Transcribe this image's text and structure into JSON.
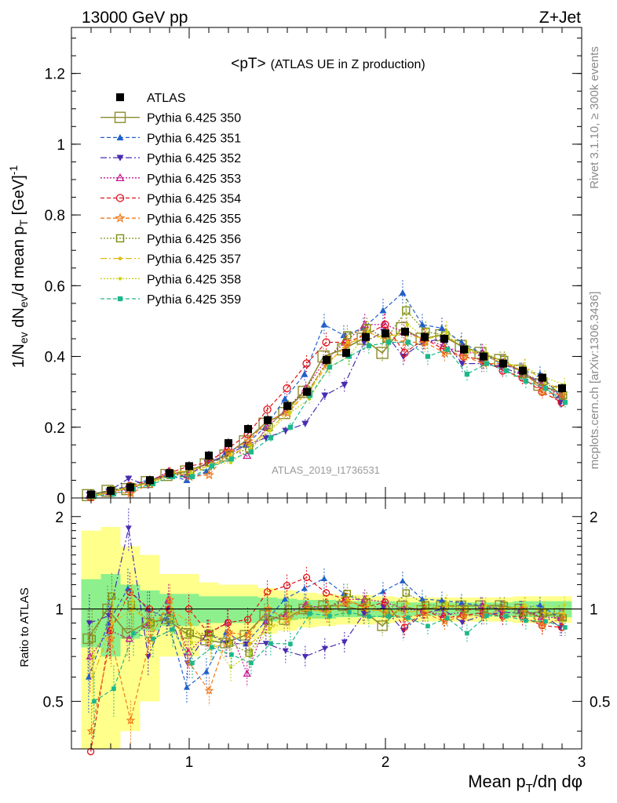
{
  "header": {
    "energy": "13000 GeV pp",
    "process": "Z+Jet"
  },
  "side": {
    "rivet": "Rivet 3.1.10, ≥ 300k events",
    "mcplots": "mcplots.cern.ch [arXiv:1306.3436]"
  },
  "chart_data": [
    {
      "type": "line",
      "title": "<pT>",
      "subtitle": "(ATLAS UE in Z production)",
      "analysis_label": "ATLAS_2019_I1736531",
      "ylabel": "1/N_ev dN_ev/d mean p_T [GeV]^-1",
      "xlim": [
        0.4,
        3.0
      ],
      "ylim": [
        0,
        1.33
      ],
      "yticks": [
        "0",
        "0.2",
        "0.4",
        "0.6",
        "0.8",
        "1",
        "1.2"
      ],
      "x": [
        0.5,
        0.6,
        0.7,
        0.8,
        0.9,
        1.0,
        1.1,
        1.2,
        1.3,
        1.4,
        1.5,
        1.6,
        1.7,
        1.8,
        1.9,
        2.0,
        2.1,
        2.2,
        2.3,
        2.4,
        2.5,
        2.6,
        2.7,
        2.8,
        2.9
      ],
      "data_series": {
        "name": "ATLAS",
        "values": [
          0.01,
          0.02,
          0.03,
          0.05,
          0.07,
          0.09,
          0.12,
          0.155,
          0.195,
          0.22,
          0.26,
          0.3,
          0.39,
          0.41,
          0.455,
          0.465,
          0.47,
          0.455,
          0.45,
          0.42,
          0.4,
          0.38,
          0.36,
          0.34,
          0.31
        ]
      },
      "series": [
        {
          "name": "Pythia 6.425 350",
          "color": "#8c8c2d",
          "dash": "",
          "marker": "open-square",
          "values": [
            0.008,
            0.02,
            0.025,
            0.045,
            0.065,
            0.075,
            0.095,
            0.12,
            0.16,
            0.21,
            0.24,
            0.3,
            0.4,
            0.42,
            0.45,
            0.41,
            0.48,
            0.45,
            0.46,
            0.43,
            0.41,
            0.39,
            0.36,
            0.32,
            0.3
          ]
        },
        {
          "name": "Pythia 6.425 351",
          "color": "#2160c9",
          "dash": "5,3",
          "marker": "triangle-up",
          "values": [
            0.006,
            0.018,
            0.035,
            0.05,
            0.065,
            0.05,
            0.075,
            0.13,
            0.15,
            0.2,
            0.28,
            0.35,
            0.49,
            0.46,
            0.48,
            0.53,
            0.58,
            0.49,
            0.48,
            0.44,
            0.41,
            0.38,
            0.36,
            0.35,
            0.29
          ]
        },
        {
          "name": "Pythia 6.425 352",
          "color": "#4a2bb3",
          "dash": "8,3,2,3",
          "marker": "triangle-down",
          "values": [
            0.009,
            0.019,
            0.055,
            0.035,
            0.07,
            0.06,
            0.1,
            0.12,
            0.15,
            0.17,
            0.19,
            0.21,
            0.29,
            0.32,
            0.44,
            0.47,
            0.4,
            0.44,
            0.45,
            0.38,
            0.38,
            0.37,
            0.35,
            0.33,
            0.27
          ]
        },
        {
          "name": "Pythia 6.425 353",
          "color": "#c2188f",
          "dash": "2,2",
          "marker": "open-triangle-up",
          "values": [
            0.007,
            0.017,
            0.024,
            0.045,
            0.075,
            0.065,
            0.1,
            0.14,
            0.12,
            0.2,
            0.25,
            0.31,
            0.39,
            0.44,
            0.49,
            0.49,
            0.47,
            0.45,
            0.43,
            0.41,
            0.41,
            0.38,
            0.36,
            0.32,
            0.29
          ]
        },
        {
          "name": "Pythia 6.425 354",
          "color": "#e0121a",
          "dash": "5,3",
          "marker": "open-circle",
          "values": [
            0.002,
            0.017,
            0.034,
            0.05,
            0.07,
            0.09,
            0.1,
            0.14,
            0.18,
            0.25,
            0.31,
            0.38,
            0.44,
            0.44,
            0.46,
            0.49,
            0.41,
            0.45,
            0.42,
            0.4,
            0.39,
            0.36,
            0.34,
            0.3,
            0.27
          ]
        },
        {
          "name": "Pythia 6.425 355",
          "color": "#f07a1a",
          "dash": "5,3",
          "marker": "open-star",
          "values": [
            0.004,
            0.016,
            0.013,
            0.04,
            0.075,
            0.06,
            0.065,
            0.13,
            0.16,
            0.22,
            0.24,
            0.3,
            0.38,
            0.43,
            0.47,
            0.45,
            0.44,
            0.44,
            0.41,
            0.4,
            0.38,
            0.38,
            0.36,
            0.3,
            0.29
          ]
        },
        {
          "name": "Pythia 6.425 356",
          "color": "#7d8f12",
          "dash": "2,2",
          "marker": "open-square",
          "values": [
            0.008,
            0.022,
            0.031,
            0.045,
            0.065,
            0.075,
            0.1,
            0.12,
            0.14,
            0.2,
            0.26,
            0.3,
            0.39,
            0.46,
            0.48,
            0.45,
            0.53,
            0.47,
            0.46,
            0.42,
            0.4,
            0.39,
            0.35,
            0.33,
            0.29
          ]
        },
        {
          "name": "Pythia 6.425 357",
          "color": "#e3b90d",
          "dash": "8,3,2,3",
          "marker": "dot",
          "values": [
            0.006,
            0.018,
            0.03,
            0.045,
            0.07,
            0.08,
            0.09,
            0.12,
            0.15,
            0.19,
            0.25,
            0.3,
            0.38,
            0.44,
            0.45,
            0.46,
            0.46,
            0.45,
            0.46,
            0.42,
            0.4,
            0.38,
            0.37,
            0.33,
            0.3
          ]
        },
        {
          "name": "Pythia 6.425 358",
          "color": "#c9d41a",
          "dash": "2,2",
          "marker": "dot",
          "values": [
            0.007,
            0.02,
            0.032,
            0.043,
            0.065,
            0.07,
            0.095,
            0.1,
            0.14,
            0.19,
            0.24,
            0.28,
            0.37,
            0.4,
            0.47,
            0.44,
            0.49,
            0.45,
            0.47,
            0.42,
            0.41,
            0.38,
            0.37,
            0.34,
            0.32
          ]
        },
        {
          "name": "Pythia 6.425 359",
          "color": "#1db88a",
          "dash": "5,3",
          "marker": "small-square",
          "values": [
            0.005,
            0.011,
            0.025,
            0.04,
            0.06,
            0.06,
            0.09,
            0.11,
            0.13,
            0.17,
            0.2,
            0.29,
            0.37,
            0.4,
            0.43,
            0.44,
            0.44,
            0.4,
            0.42,
            0.35,
            0.38,
            0.36,
            0.33,
            0.31,
            0.27
          ]
        }
      ]
    },
    {
      "type": "line",
      "ylabel": "Ratio to ATLAS",
      "xlabel": "Mean p_T/dη dφ",
      "xlim": [
        0.4,
        3.0
      ],
      "ylim": [
        0.35,
        2.3
      ],
      "log_y": true,
      "xticks": [
        "1",
        "2",
        "3"
      ],
      "yticks": [
        "0.5",
        "1",
        "2"
      ],
      "band_note": "stat and total uncertainty bands of ATLAS data",
      "uncertainty_inner": [
        0.25,
        0.3,
        0.2,
        0.15,
        0.12,
        0.12,
        0.1,
        0.1,
        0.1,
        0.09,
        0.08,
        0.07,
        0.07,
        0.06,
        0.06,
        0.06,
        0.05,
        0.05,
        0.05,
        0.05,
        0.05,
        0.05,
        0.06,
        0.06,
        0.06
      ],
      "uncertainty_outer": [
        0.8,
        0.85,
        0.6,
        0.5,
        0.3,
        0.3,
        0.22,
        0.2,
        0.2,
        0.17,
        0.15,
        0.13,
        0.12,
        0.11,
        0.11,
        0.1,
        0.09,
        0.09,
        0.09,
        0.09,
        0.09,
        0.09,
        0.1,
        0.1,
        0.1
      ]
    }
  ]
}
